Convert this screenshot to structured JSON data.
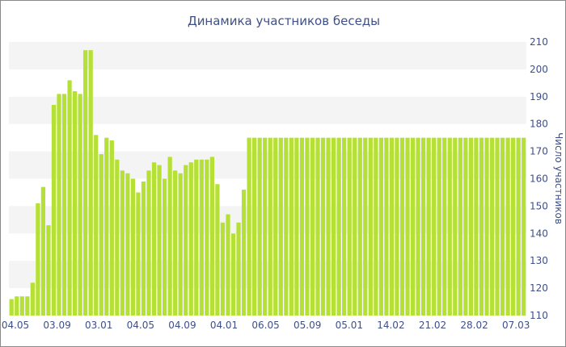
{
  "chart_data": {
    "type": "bar",
    "title": "Динамика участников беседы",
    "xlabel": "",
    "ylabel": "Число участников",
    "ylim": [
      110,
      210
    ],
    "yticks": [
      110,
      120,
      130,
      140,
      150,
      160,
      170,
      180,
      190,
      200,
      210
    ],
    "x_tick_labels": [
      "04.05",
      "03.09",
      "03.01",
      "04.05",
      "04.09",
      "04.01",
      "06.05",
      "05.09",
      "05.01",
      "14.02",
      "21.02",
      "28.02",
      "07.03"
    ],
    "bar_color": "#b5e035",
    "grid": "alternating horizontal bands",
    "y_axis_position": "right",
    "values": [
      116,
      117,
      117,
      117,
      122,
      151,
      157,
      143,
      187,
      191,
      191,
      196,
      192,
      191,
      207,
      207,
      176,
      169,
      175,
      174,
      167,
      163,
      162,
      160,
      155,
      159,
      163,
      166,
      165,
      160,
      168,
      163,
      162,
      165,
      166,
      167,
      167,
      167,
      168,
      158,
      144,
      147,
      140,
      144,
      156,
      175,
      175,
      175,
      175,
      175,
      175,
      175,
      175,
      175,
      175,
      175,
      175,
      175,
      175,
      175,
      175,
      175,
      175,
      175,
      175,
      175,
      175,
      175,
      175,
      175,
      175,
      175,
      175,
      175,
      175,
      175,
      175,
      175,
      175,
      175,
      175,
      175,
      175,
      175,
      175,
      175,
      175,
      175,
      175,
      175,
      175,
      175,
      175,
      175,
      175,
      175,
      175,
      175
    ]
  }
}
